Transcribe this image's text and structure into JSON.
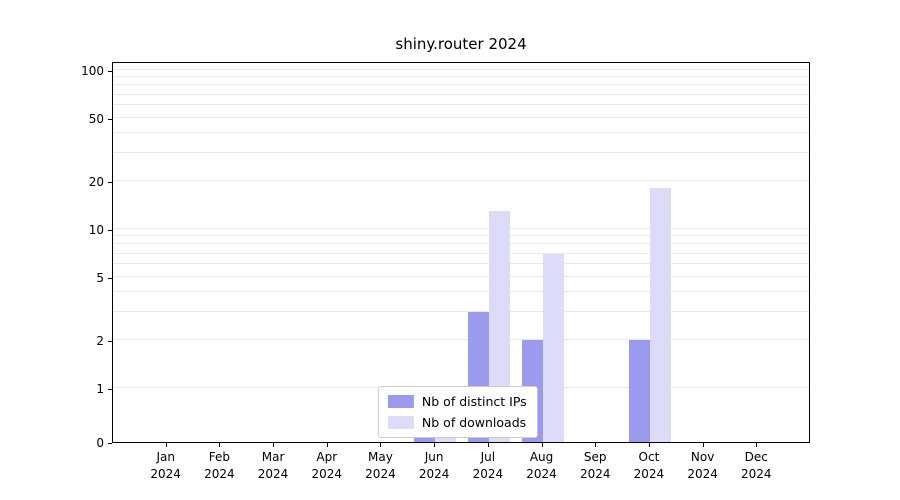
{
  "chart_data": {
    "type": "bar",
    "title": "shiny.router 2024",
    "categories": [
      "Jan\n2024",
      "Feb\n2024",
      "Mar\n2024",
      "Apr\n2024",
      "May\n2024",
      "Jun\n2024",
      "Jul\n2024",
      "Aug\n2024",
      "Sep\n2024",
      "Oct\n2024",
      "Nov\n2024",
      "Dec\n2024"
    ],
    "series": [
      {
        "name": "Nb of distinct IPs",
        "color": "#9a9aee",
        "values": [
          0,
          0,
          0,
          0,
          0,
          1,
          3,
          2,
          0,
          2,
          0,
          0
        ]
      },
      {
        "name": "Nb of downloads",
        "color": "#dcdcf8",
        "values": [
          0,
          0,
          0,
          0,
          0,
          1,
          13,
          7,
          0,
          18,
          0,
          0
        ]
      }
    ],
    "yscale": "symlog",
    "yticks": [
      0,
      1,
      2,
      5,
      10,
      20,
      50,
      100
    ],
    "minor_gridlines": [
      1,
      2,
      3,
      4,
      5,
      6,
      7,
      8,
      9,
      10,
      20,
      30,
      40,
      50,
      60,
      70,
      80,
      90,
      100
    ],
    "ylim": [
      0,
      115
    ],
    "xlabel": "",
    "ylabel": "",
    "grid": "horizontal",
    "legend_position": "bottom-center",
    "colors": {
      "grid": "#e8e8e8",
      "axis": "#000000",
      "background": "#ffffff",
      "legend_border": "#cccccc"
    }
  }
}
